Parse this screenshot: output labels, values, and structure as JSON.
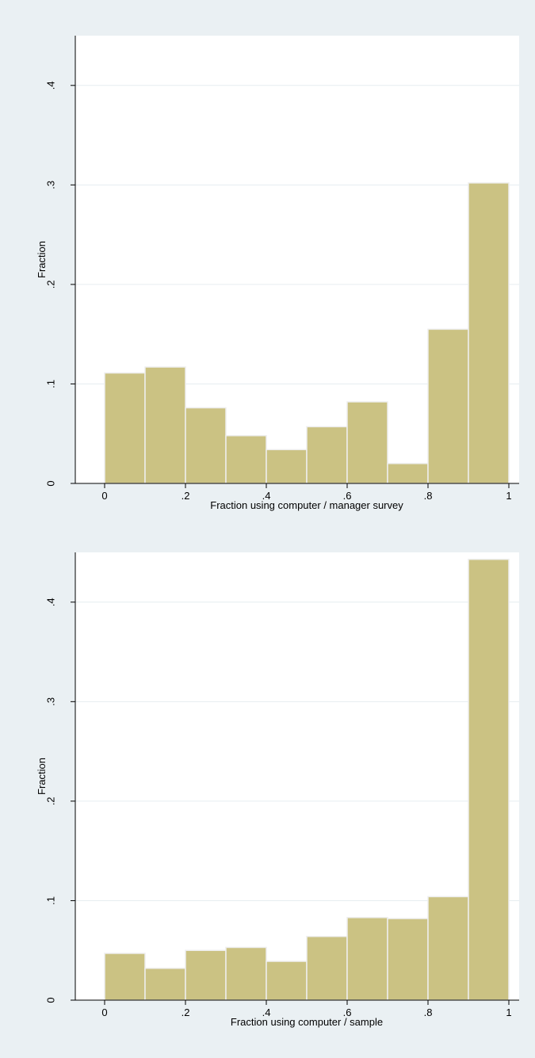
{
  "theme": {
    "background": "#eaf0f3",
    "plot_region": "#ffffff",
    "bar_fill": "#cbc283",
    "bar_edge": "#eeeeee",
    "gridline": "#e6edf0",
    "axis": "#000000"
  },
  "chart_data": [
    {
      "type": "bar",
      "subtype": "histogram",
      "xlabel": "Fraction using computer / manager survey",
      "ylabel": "Fraction",
      "xlim": [
        0,
        1
      ],
      "ylim": [
        0,
        0.45
      ],
      "xticks": [
        0,
        0.2,
        0.4,
        0.6,
        0.8,
        1
      ],
      "xtick_labels": [
        "0",
        ".2",
        ".4",
        ".6",
        ".8",
        "1"
      ],
      "yticks": [
        0,
        0.1,
        0.2,
        0.3,
        0.4
      ],
      "ytick_labels": [
        "0",
        ".1",
        ".2",
        ".3",
        ".4"
      ],
      "grid": true,
      "bin_edges": [
        0,
        0.1,
        0.2,
        0.3,
        0.4,
        0.5,
        0.6,
        0.7,
        0.8,
        0.9,
        1.0
      ],
      "values": [
        0.111,
        0.117,
        0.076,
        0.048,
        0.034,
        0.057,
        0.082,
        0.02,
        0.155,
        0.302
      ]
    },
    {
      "type": "bar",
      "subtype": "histogram",
      "xlabel": "Fraction using computer / sample",
      "ylabel": "Fraction",
      "xlim": [
        0,
        1
      ],
      "ylim": [
        0,
        0.45
      ],
      "xticks": [
        0,
        0.2,
        0.4,
        0.6,
        0.8,
        1
      ],
      "xtick_labels": [
        "0",
        ".2",
        ".4",
        ".6",
        ".8",
        "1"
      ],
      "yticks": [
        0,
        0.1,
        0.2,
        0.3,
        0.4
      ],
      "ytick_labels": [
        "0",
        ".1",
        ".2",
        ".3",
        ".4"
      ],
      "grid": true,
      "bin_edges": [
        0,
        0.1,
        0.2,
        0.3,
        0.4,
        0.5,
        0.6,
        0.7,
        0.8,
        0.9,
        1.0
      ],
      "values": [
        0.047,
        0.032,
        0.05,
        0.053,
        0.039,
        0.064,
        0.083,
        0.082,
        0.104,
        0.443
      ]
    }
  ]
}
